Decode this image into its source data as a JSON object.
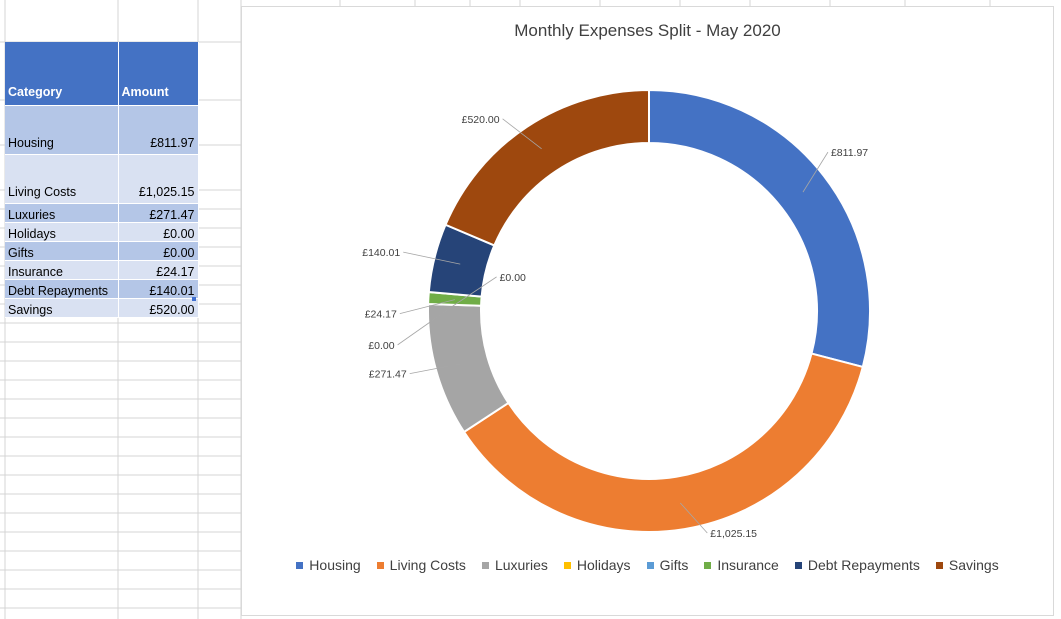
{
  "table": {
    "headers": [
      "Category",
      "Amount"
    ],
    "rows": [
      {
        "category": "Housing",
        "amount": "£811.97"
      },
      {
        "category": "Living Costs",
        "amount": "£1,025.15"
      },
      {
        "category": "Luxuries",
        "amount": "£271.47"
      },
      {
        "category": "Holidays",
        "amount": "£0.00"
      },
      {
        "category": "Gifts",
        "amount": "£0.00"
      },
      {
        "category": "Insurance",
        "amount": "£24.17"
      },
      {
        "category": "Debt Repayments",
        "amount": "£140.01"
      },
      {
        "category": "Savings",
        "amount": "£520.00"
      }
    ]
  },
  "chart_data": {
    "type": "pie",
    "subtype": "doughnut",
    "title": "Monthly Expenses Split - May 2020",
    "categories": [
      "Housing",
      "Living Costs",
      "Luxuries",
      "Holidays",
      "Gifts",
      "Insurance",
      "Debt Repayments",
      "Savings"
    ],
    "values": [
      811.97,
      1025.15,
      271.47,
      0.0,
      0.0,
      24.17,
      140.01,
      520.0
    ],
    "data_labels": [
      "£811.97",
      "£1,025.15",
      "£271.47",
      "£0.00",
      "£0.00",
      "£24.17",
      "£140.01",
      "£520.00"
    ],
    "colors": [
      "#4472c4",
      "#ed7d31",
      "#a5a5a5",
      "#ffc000",
      "#5b9bd5",
      "#70ad47",
      "#264478",
      "#9e480e"
    ],
    "legend_position": "bottom"
  }
}
